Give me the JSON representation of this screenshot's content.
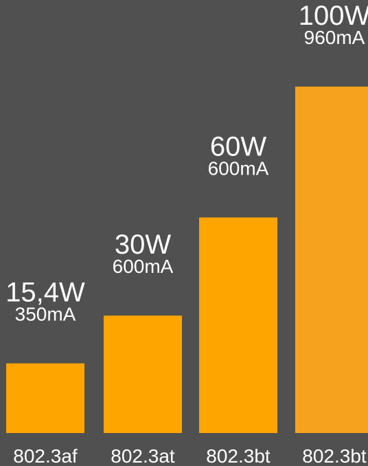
{
  "chart_data": {
    "type": "bar",
    "categories": [
      "802.3af",
      "802.3at",
      "802.3bt",
      "802.3bt"
    ],
    "values": [
      15.4,
      30,
      60,
      100
    ],
    "power_labels": [
      "15,4W",
      "30W",
      "60W",
      "100W"
    ],
    "current_labels": [
      "350mA",
      "600mA",
      "600mA",
      "960mA"
    ],
    "ylim": [
      0,
      100
    ],
    "grid": false,
    "legend": "none",
    "colors": {
      "background": "#505050",
      "bars": [
        "#FFA500",
        "#FFA500",
        "#FFA500",
        "#F7A21E"
      ],
      "text": "#FFFFFF"
    }
  }
}
